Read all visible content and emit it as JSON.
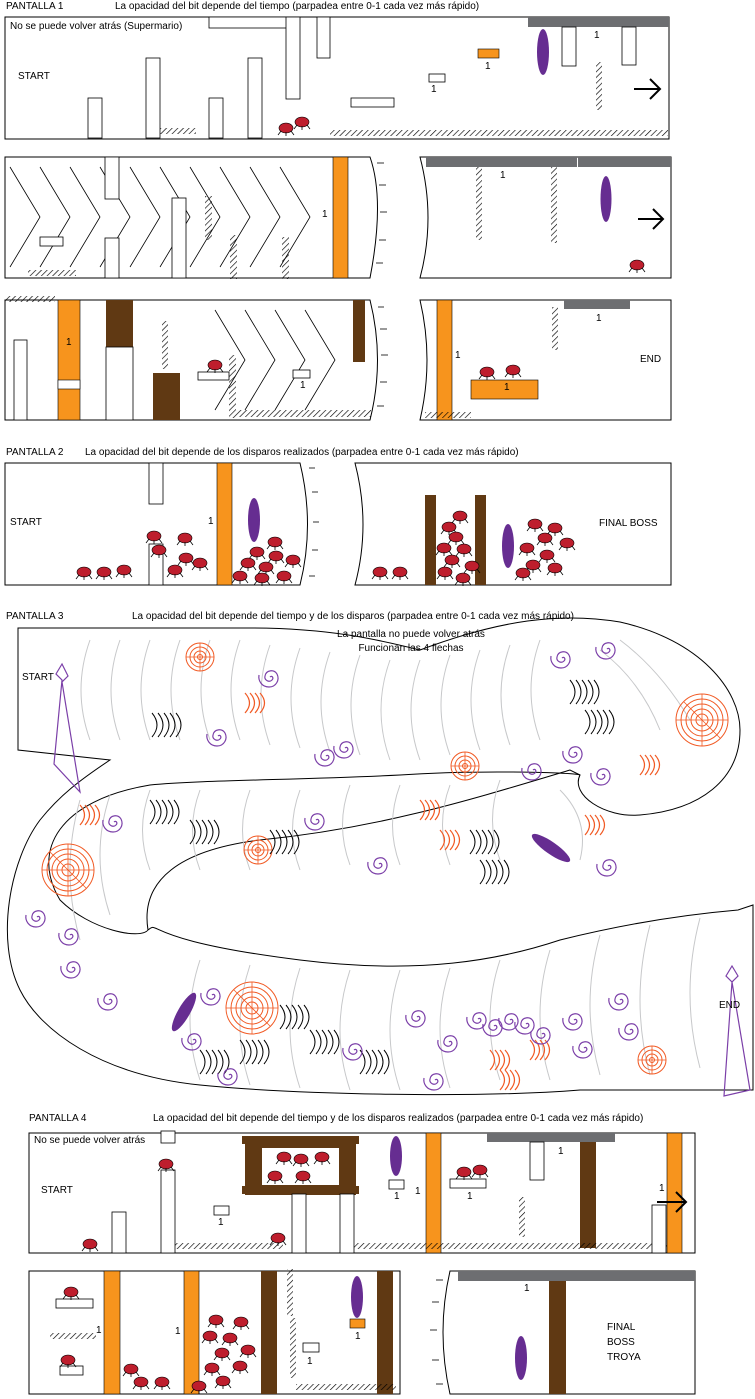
{
  "colors": {
    "orange": "#f7941d",
    "purple": "#662d91",
    "brown": "#603913",
    "gray": "#6d6e71",
    "enemy": "#be1e2d",
    "lineGray": "#c7c8ca",
    "swirl": "#8a5bb0",
    "ring": "#f15a24"
  },
  "s1": {
    "label": "PANTALLA 1",
    "title": "La opacidad del bit depende del tiempo (parpadea entre 0-1 cada vez más rápido)",
    "note": "No se puede volver atrás (Supermario)",
    "start": "START",
    "end": "END",
    "bit": "1"
  },
  "s2": {
    "label": "PANTALLA 2",
    "title": "La opacidad del bit depende de los disparos realizados (parpadea entre 0-1 cada vez más rápido)",
    "start": "START",
    "boss": "FINAL BOSS",
    "bit": "1"
  },
  "s3": {
    "label": "PANTALLA 3",
    "title": "La opacidad del bit depende del tiempo y de los disparos (parpadea entre 0-1 cada vez más rápido)",
    "note1": "La pantalla no puede volver atrás",
    "note2": "Funcionan las 4 flechas",
    "start": "START",
    "end": "END"
  },
  "s4": {
    "label": "PANTALLA 4",
    "title": "La opacidad del bit depende del tiempo y de los disparos realizados (parpadea entre 0-1 cada vez más rápido)",
    "note": "No se puede volver atrás",
    "start": "START",
    "boss1": "FINAL",
    "boss2": "BOSS",
    "boss3": "TROYA",
    "bit": "1"
  }
}
